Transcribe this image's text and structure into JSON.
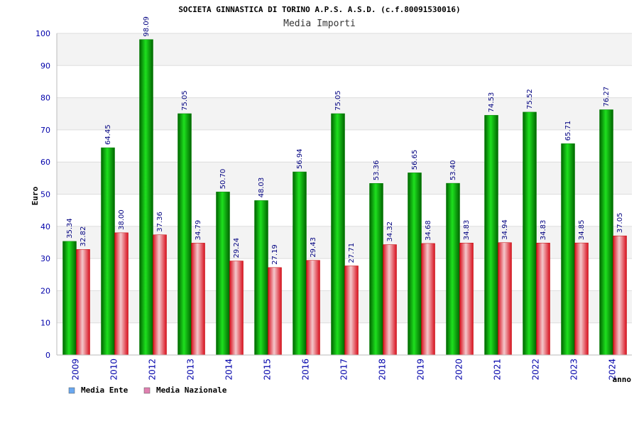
{
  "chart_data": {
    "type": "bar",
    "title": "SOCIETA GINNASTICA DI TORINO A.P.S. A.S.D. (c.f.80091530016)",
    "subtitle": "Media Importi",
    "ylabel": "Euro",
    "xlabel": "anno",
    "ylim": [
      0,
      100
    ],
    "yticks": [
      "0",
      "10",
      "20",
      "30",
      "40",
      "50",
      "60",
      "70",
      "80",
      "90",
      "100"
    ],
    "categories": [
      "2009",
      "2010",
      "2012",
      "2013",
      "2014",
      "2015",
      "2016",
      "2017",
      "2018",
      "2019",
      "2020",
      "2021",
      "2022",
      "2023",
      "2024"
    ],
    "series": [
      {
        "name": "Media Ente",
        "color": "#00b400",
        "legend_color": "#6aa8f0",
        "values": [
          35.34,
          64.45,
          98.09,
          75.05,
          50.7,
          48.03,
          56.94,
          75.05,
          53.36,
          56.65,
          53.4,
          74.53,
          75.52,
          65.71,
          76.27
        ],
        "labels": [
          "35.34",
          "64.45",
          "98.09",
          "75.05",
          "50.70",
          "48.03",
          "56.94",
          "75.05",
          "53.36",
          "56.65",
          "53.40",
          "74.53",
          "75.52",
          "65.71",
          "76.27"
        ]
      },
      {
        "name": "Media Nazionale",
        "color": "#e8323c",
        "legend_color": "#e080b0",
        "values": [
          32.82,
          38.0,
          37.36,
          34.79,
          29.24,
          27.19,
          29.43,
          27.71,
          34.32,
          34.68,
          34.83,
          34.94,
          34.83,
          34.85,
          37.05
        ],
        "labels": [
          "32.82",
          "38.00",
          "37.36",
          "34.79",
          "29.24",
          "27.19",
          "29.43",
          "27.71",
          "34.32",
          "34.68",
          "34.83",
          "34.94",
          "34.83",
          "34.85",
          "37.05"
        ]
      }
    ]
  }
}
